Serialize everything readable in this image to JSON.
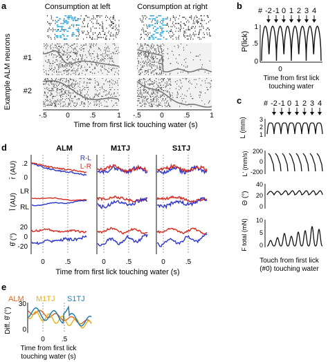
{
  "panels": {
    "a": {
      "label": "a",
      "titles": [
        "Consumption at left",
        "Consumption at right"
      ],
      "ylabel": "Example ALM neurons",
      "neuron_labels": [
        "#1",
        "#2"
      ],
      "xticks": [
        "-.5",
        "0",
        ".5",
        "1"
      ],
      "xlabel": "Time from first lick touching water (s)"
    },
    "b": {
      "label": "b",
      "top_labels": [
        "#",
        "-2",
        "-1",
        "0",
        "1",
        "2",
        "3",
        "4"
      ],
      "ylabel": "P(lick)",
      "yticks": [
        "1",
        ".5",
        "0"
      ],
      "xtick": "0",
      "xlabel_lines": [
        "Time from first lick",
        "touching water"
      ]
    },
    "c": {
      "label": "c",
      "top_labels": [
        "#",
        "-2",
        "-1",
        "0",
        "1",
        "2",
        "3",
        "4"
      ],
      "rows": [
        {
          "ylabel": "L (mm)",
          "yticks": [
            "3",
            "2",
            "1"
          ]
        },
        {
          "ylabel": "L' (mm/s)",
          "yticks": [
            "200",
            "0",
            "-200"
          ]
        },
        {
          "ylabel": "Θ (°)",
          "yticks": [
            "40",
            "20",
            "0"
          ]
        },
        {
          "ylabel": "F total (mN)",
          "yticks": [
            "10",
            "5",
            "0"
          ]
        }
      ],
      "xlabel_lines": [
        "Touch from first lick",
        "(#0) touching water"
      ]
    },
    "d": {
      "label": "d",
      "columns": [
        "ALM",
        "M1TJ",
        "S1TJ"
      ],
      "legend": [
        {
          "text": "R-L",
          "color": "#2b35c9"
        },
        {
          "text": "L-R",
          "color": "#d42a1f"
        }
      ],
      "row_labels": [
        "r̄ (AU)",
        "l̄ (AU)",
        "θ̂ (°)"
      ],
      "row1_yticks": [
        ".2",
        "0"
      ],
      "row2_yticks": [
        "LR",
        "RL"
      ],
      "row3_yticks": [
        "20",
        "0",
        "-20"
      ],
      "xticks": [
        "0",
        ".5"
      ],
      "xlabel": "Time from first lick touching water (s)"
    },
    "e": {
      "label": "e",
      "legend": [
        {
          "text": "ALM",
          "color": "#d8692a"
        },
        {
          "text": "M1TJ",
          "color": "#e6b21f"
        },
        {
          "text": "S1TJ",
          "color": "#1f7fb0"
        }
      ],
      "ylabel": "Diff. θ̂ (°)",
      "yticks": [
        "30",
        "0"
      ],
      "xticks": [
        "0",
        ".5"
      ],
      "xlabel_lines": [
        "Time from first lick",
        "touching water (s)"
      ]
    }
  },
  "colors": {
    "red": "#d42a1f",
    "blue": "#2b35c9",
    "cyan": "#28a9e0",
    "gray": "#777777",
    "alm": "#d8692a",
    "m1tj": "#e6b21f",
    "s1tj": "#1f7fb0"
  }
}
